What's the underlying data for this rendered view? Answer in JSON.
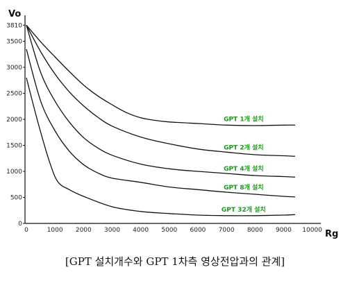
{
  "chart_data": {
    "type": "line",
    "xlabel": "Rg",
    "ylabel": "Vo",
    "xlim": [
      0,
      10000
    ],
    "ylim": [
      0,
      4000
    ],
    "x_ticks": [
      "0",
      "1000",
      "2000",
      "3000",
      "4000",
      "5000",
      "6000",
      "7000",
      "8000",
      "9000",
      "10000"
    ],
    "y_ticks": [
      "0",
      "500",
      "1000",
      "1500",
      "2000",
      "2500",
      "3000",
      "3500",
      "3810"
    ],
    "series": [
      {
        "name": "GPT 1개 설치",
        "x": [
          0,
          500,
          1000,
          1500,
          2000,
          2500,
          3000,
          3500,
          4000,
          4500,
          5000,
          6000,
          7000,
          8000,
          9000,
          9400
        ],
        "y": [
          3810,
          3490,
          3200,
          2920,
          2660,
          2450,
          2280,
          2130,
          2030,
          1980,
          1950,
          1920,
          1890,
          1880,
          1890,
          1890
        ]
      },
      {
        "name": "GPT 2개 설치",
        "x": [
          0,
          500,
          1000,
          1500,
          2000,
          2500,
          3000,
          4000,
          5000,
          6000,
          7000,
          8000,
          9000,
          9400
        ],
        "y": [
          3810,
          3300,
          2870,
          2530,
          2260,
          2040,
          1870,
          1660,
          1530,
          1430,
          1370,
          1320,
          1300,
          1290
        ]
      },
      {
        "name": "GPT 4개 설치",
        "x": [
          0,
          500,
          1000,
          1500,
          2000,
          2500,
          3000,
          4000,
          5000,
          6000,
          7000,
          8000,
          9000,
          9400
        ],
        "y": [
          3810,
          2900,
          2350,
          1950,
          1650,
          1450,
          1310,
          1140,
          1050,
          1000,
          960,
          920,
          900,
          890
        ]
      },
      {
        "name": "GPT 8개 설치",
        "x": [
          0,
          500,
          1000,
          1500,
          2000,
          2500,
          3000,
          4000,
          5000,
          6000,
          7000,
          8000,
          9000,
          9400
        ],
        "y": [
          3350,
          2350,
          1780,
          1390,
          1130,
          970,
          870,
          790,
          700,
          650,
          600,
          560,
          520,
          510
        ]
      },
      {
        "name": "GPT 32개 설치",
        "x": [
          0,
          400,
          800,
          1100,
          1500,
          2000,
          3000,
          4000,
          5000,
          6000,
          7000,
          8000,
          9000,
          9400
        ],
        "y": [
          2800,
          1950,
          1200,
          800,
          650,
          520,
          320,
          230,
          190,
          160,
          150,
          150,
          160,
          170
        ]
      }
    ]
  },
  "caption": "[GPT 설치개수와 GPT 1차측 영상전압과의 관계]"
}
